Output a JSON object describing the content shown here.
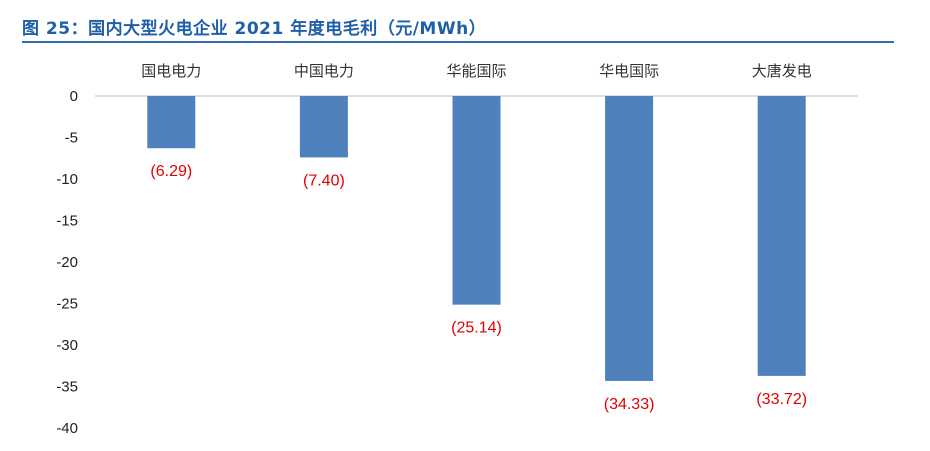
{
  "figure": {
    "title": "图 25：国内大型火电企业 2021 年度电毛利（元/MWh）"
  },
  "colors": {
    "title": "#1f5fa8",
    "rule": "#2e6db4",
    "bar": "#4f81bd",
    "data_label": "#e00000",
    "axis": "#bfbfbf"
  },
  "chart_data": {
    "type": "bar",
    "title": "图 25：国内大型火电企业 2021 年度电毛利（元/MWh）",
    "categories": [
      "国电电力",
      "中国电力",
      "华能国际",
      "华电国际",
      "大唐发电"
    ],
    "values": [
      -6.29,
      -7.4,
      -25.14,
      -34.33,
      -33.72
    ],
    "data_labels": [
      "(6.29)",
      "(7.40)",
      "(25.14)",
      "(34.33)",
      "(33.72)"
    ],
    "ylim": [
      -40,
      0
    ],
    "yticks": [
      0,
      -5,
      -10,
      -15,
      -20,
      -25,
      -30,
      -35,
      -40
    ],
    "xlabel": "",
    "ylabel": "",
    "category_axis_position": "top",
    "grid": false,
    "legend": "none"
  }
}
